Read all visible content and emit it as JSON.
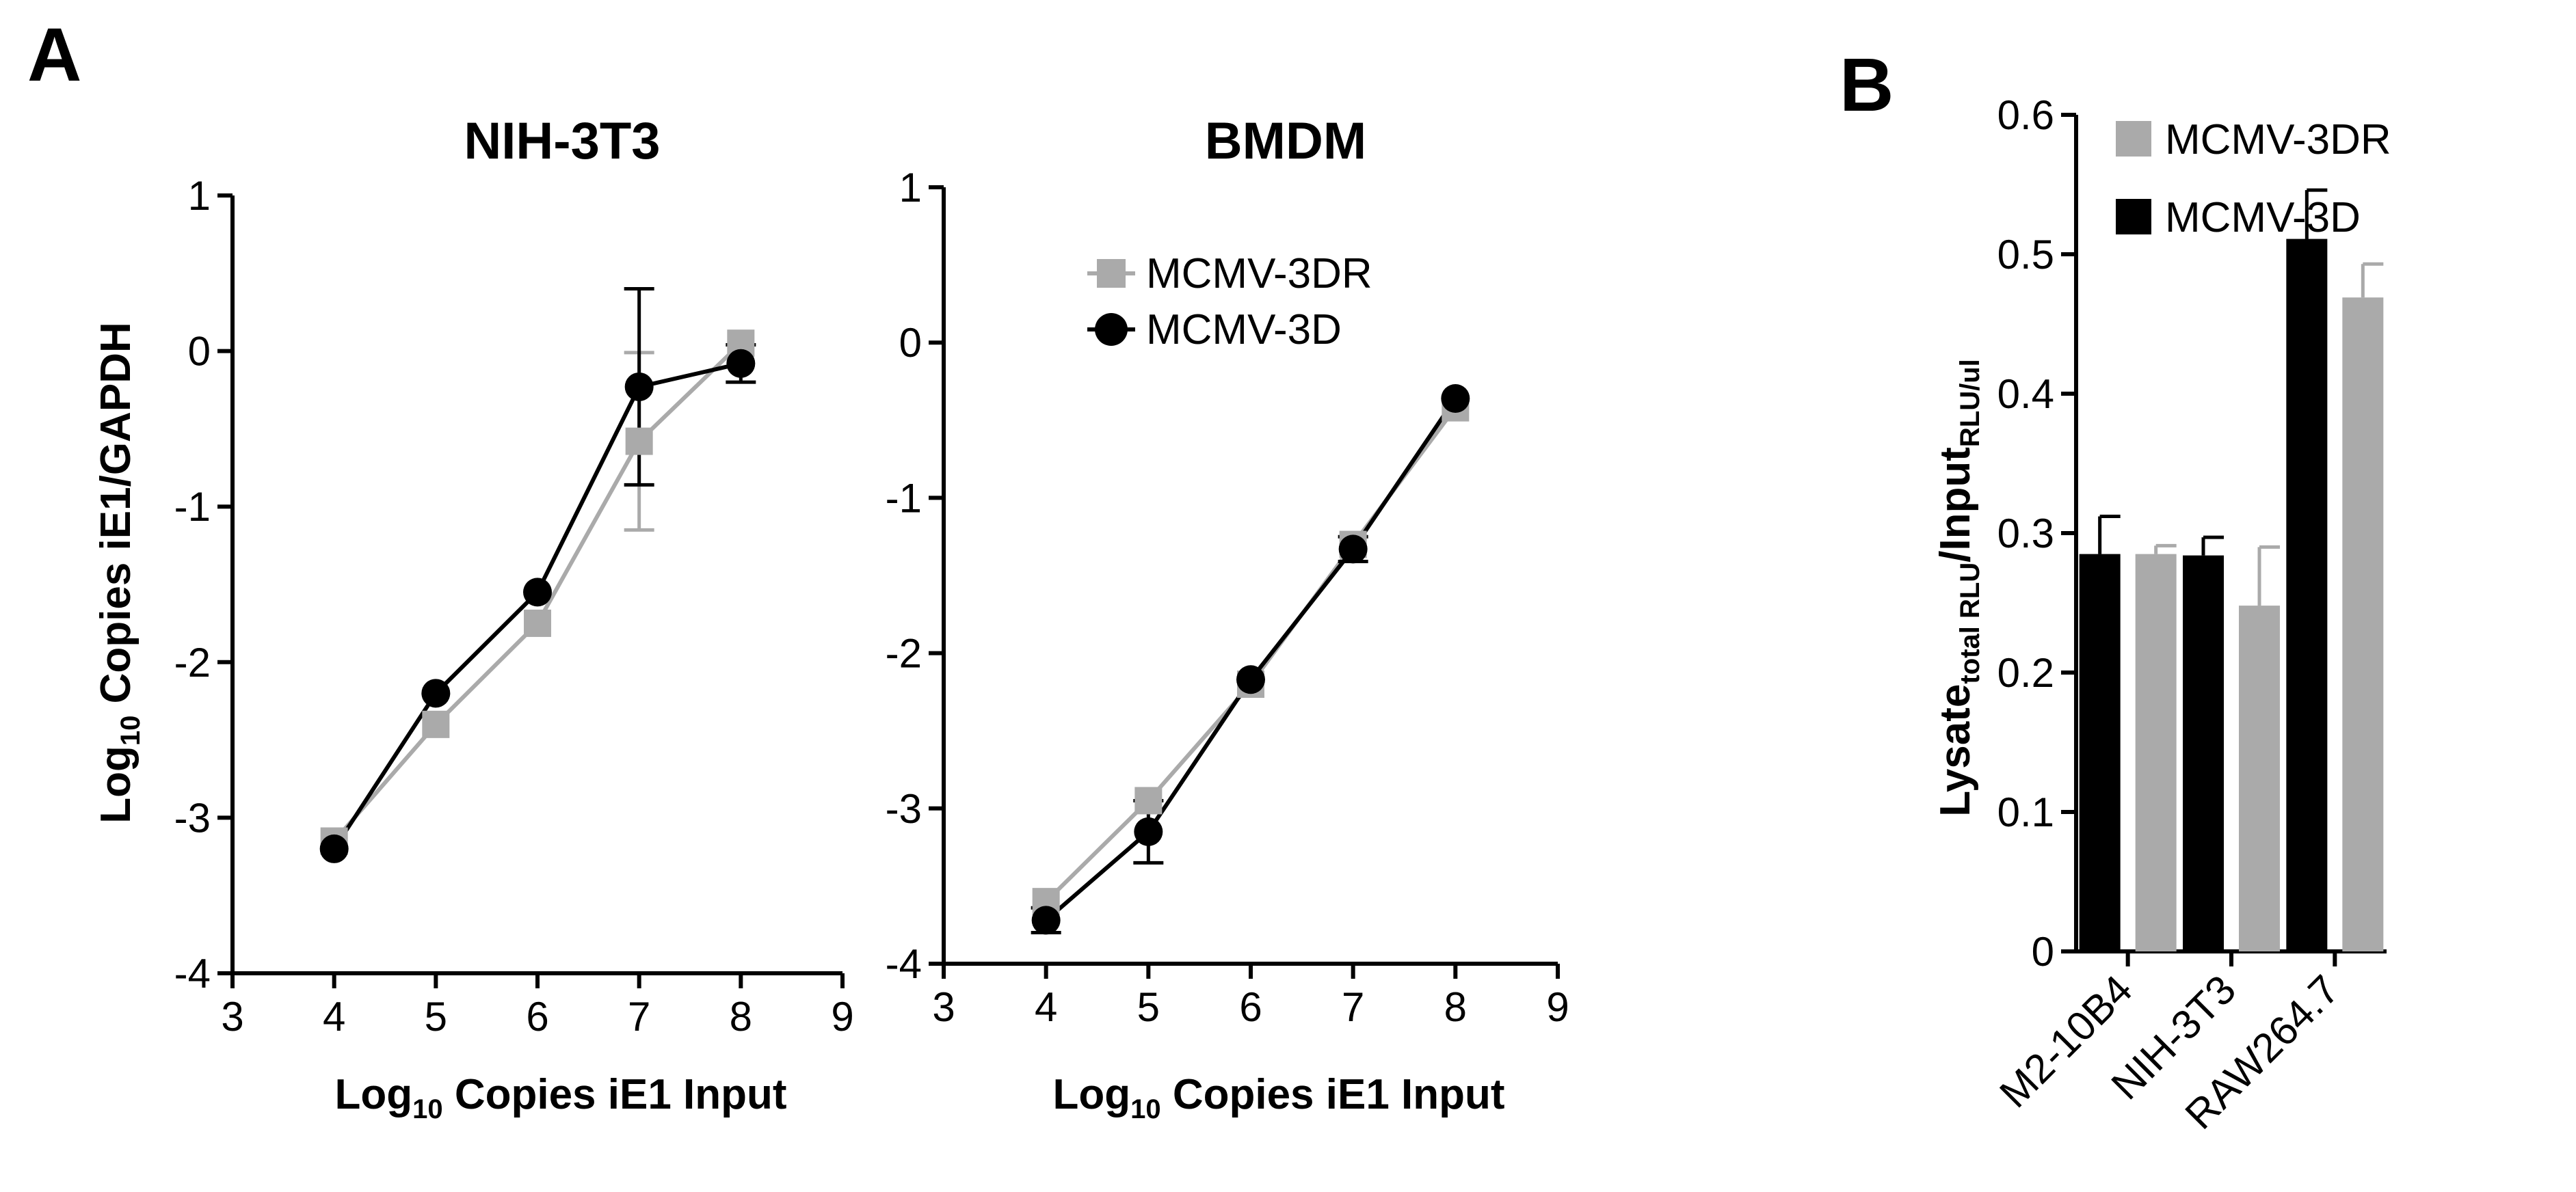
{
  "panel_labels": [
    "A",
    "B"
  ],
  "colors": {
    "mcmv_3dr": "#aaaaaa",
    "mcmv_3d": "#000000"
  },
  "chart_data": [
    {
      "type": "line",
      "title": "NIH-3T3",
      "xlabel": "Log10 Copies iE1 Input",
      "ylabel": "Log10 Copies iE1/GAPDH",
      "xlim": [
        3,
        9
      ],
      "ylim": [
        -4,
        1
      ],
      "xticks": [
        "3",
        "4",
        "5",
        "6",
        "7",
        "8",
        "9"
      ],
      "yticks": [
        "-4",
        "-3",
        "-2",
        "-1",
        "0",
        "1"
      ],
      "series": [
        {
          "name": "MCMV-3DR",
          "marker": "square",
          "color": "#aaaaaa",
          "x": [
            4,
            5,
            6,
            7,
            8
          ],
          "y": [
            -3.15,
            -2.4,
            -1.75,
            -0.58,
            0.05
          ],
          "err": [
            0,
            0,
            0,
            0.57,
            0
          ]
        },
        {
          "name": "MCMV-3D",
          "marker": "circle",
          "color": "#000000",
          "x": [
            4,
            5,
            6,
            7,
            8
          ],
          "y": [
            -3.2,
            -2.2,
            -1.55,
            -0.23,
            -0.08
          ],
          "err": [
            0,
            0,
            0,
            0.63,
            0.12
          ]
        }
      ]
    },
    {
      "type": "line",
      "title": "BMDM",
      "xlabel": "Log10 Copies iE1 Input",
      "ylabel": "",
      "xlim": [
        3,
        9
      ],
      "ylim": [
        -4,
        1
      ],
      "xticks": [
        "3",
        "4",
        "5",
        "6",
        "7",
        "8",
        "9"
      ],
      "yticks": [
        "-4",
        "-3",
        "-2",
        "-1",
        "0",
        "1"
      ],
      "legend": {
        "placement": "top-right",
        "entries": [
          "MCMV-3DR",
          "MCMV-3D"
        ]
      },
      "series": [
        {
          "name": "MCMV-3DR",
          "marker": "square",
          "color": "#aaaaaa",
          "x": [
            4,
            5,
            6,
            7,
            8
          ],
          "y": [
            -3.6,
            -2.95,
            -2.2,
            -1.3,
            -0.42
          ],
          "err": [
            0,
            0,
            0,
            0,
            0
          ]
        },
        {
          "name": "MCMV-3D",
          "marker": "circle",
          "color": "#000000",
          "x": [
            4,
            5,
            6,
            7,
            8
          ],
          "y": [
            -3.72,
            -3.15,
            -2.17,
            -1.33,
            -0.36
          ],
          "err": [
            0.08,
            0.2,
            0,
            0.08,
            0
          ]
        }
      ]
    },
    {
      "type": "bar",
      "title": "",
      "xlabel": "",
      "ylabel_main": "Lysate",
      "ylabel_sub1": "total RLU",
      "ylabel_mid": "/Input",
      "ylabel_sub2": "RLU/ul",
      "ylim": [
        0,
        0.6
      ],
      "yticks": [
        "0",
        "0.1",
        "0.2",
        "0.3",
        "0.4",
        "0.5",
        "0.6"
      ],
      "categories": [
        "M2-10B4",
        "NIH-3T3",
        "RAW264.7"
      ],
      "legend": {
        "placement": "top-left",
        "entries": [
          "MCMV-3DR",
          "MCMV-3D"
        ]
      },
      "series": [
        {
          "name": "MCMV-3D",
          "color": "#000000",
          "values": [
            0.285,
            0.284,
            0.511
          ],
          "err": [
            0.027,
            0.013,
            0.035
          ]
        },
        {
          "name": "MCMV-3DR",
          "color": "#aaaaaa",
          "values": [
            0.285,
            0.248,
            0.469
          ],
          "err": [
            0.006,
            0.042,
            0.024
          ]
        }
      ]
    }
  ]
}
